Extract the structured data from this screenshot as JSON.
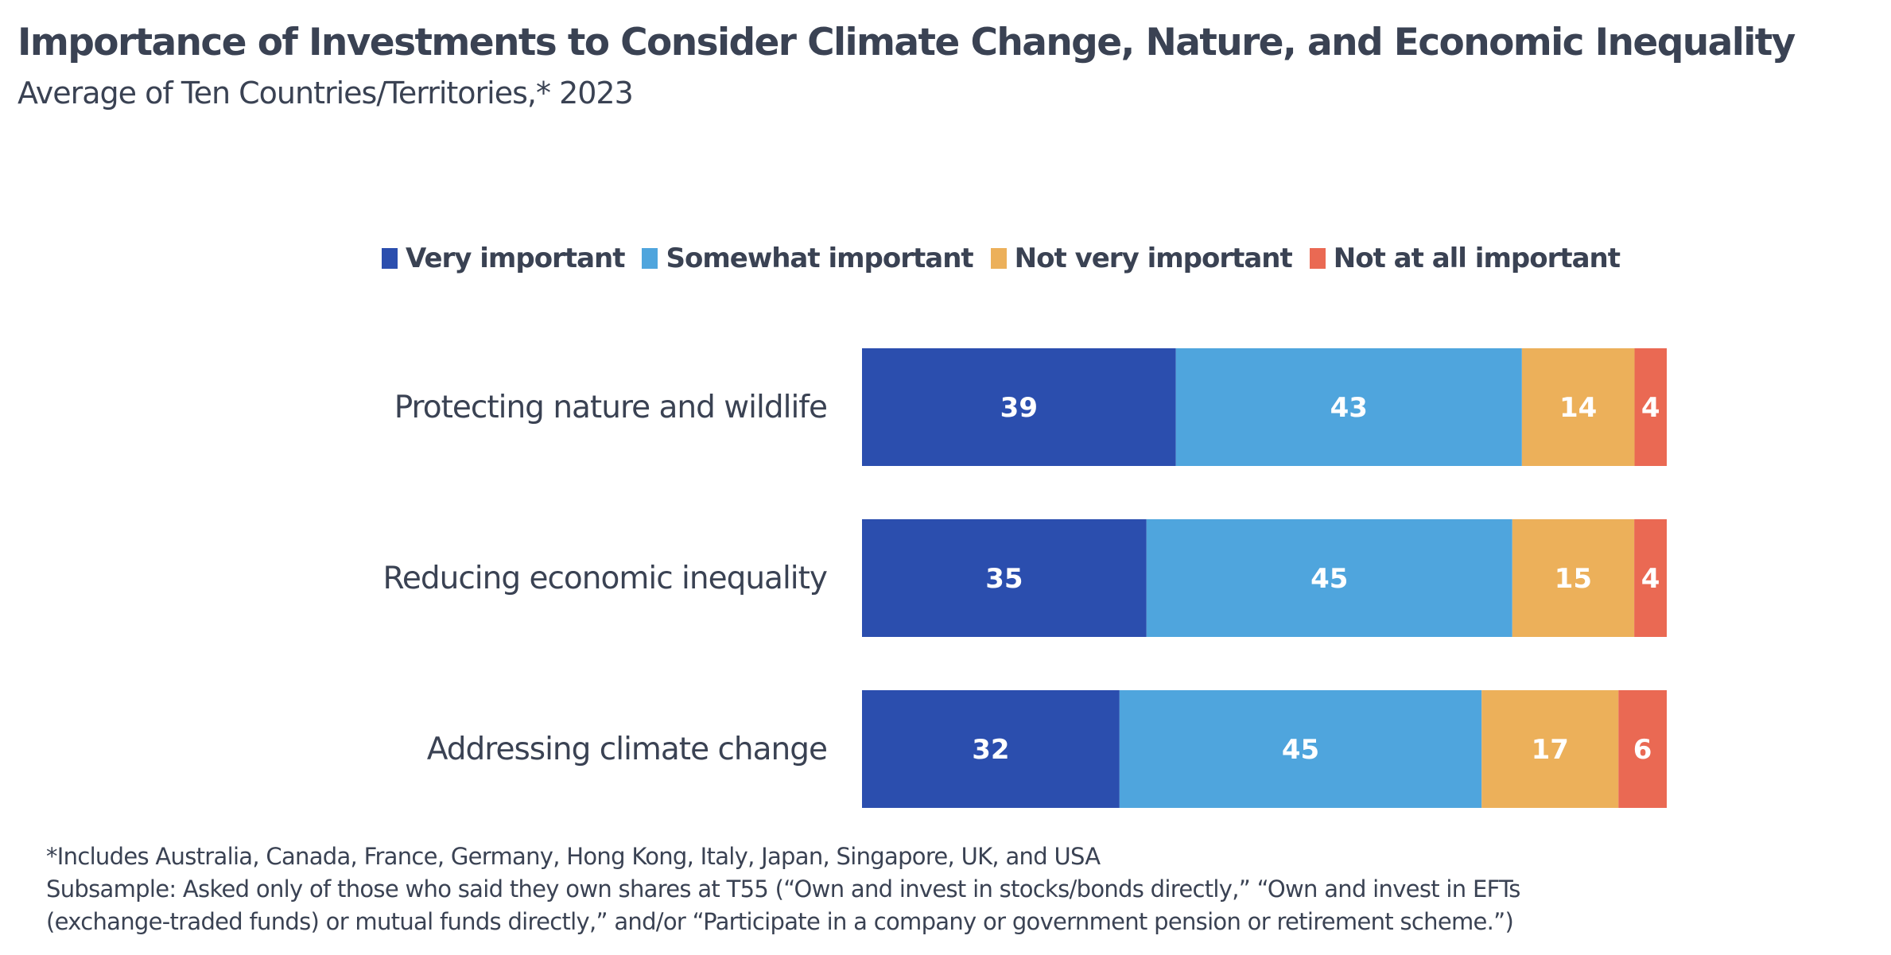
{
  "chart_data": {
    "type": "bar",
    "orientation": "horizontal",
    "stacked": true,
    "title": "Importance of Investments to Consider Climate Change, Nature, and Economic Inequality",
    "subtitle": "Average of Ten Countries/Territories,* 2023",
    "categories": [
      "Protecting nature and wildlife",
      "Reducing economic inequality",
      "Addressing climate change"
    ],
    "series": [
      {
        "name": "Very important",
        "values": [
          39,
          35,
          32
        ],
        "color": "#2b4eae"
      },
      {
        "name": "Somewhat important",
        "values": [
          43,
          45,
          45
        ],
        "color": "#4fa5dd"
      },
      {
        "name": "Not very important",
        "values": [
          14,
          15,
          17
        ],
        "color": "#ecb05a"
      },
      {
        "name": "Not at all important",
        "values": [
          4,
          4,
          6
        ],
        "color": "#ea6953"
      }
    ],
    "data_labels": true,
    "legend_position": "top",
    "grid": false,
    "axes_visible": false
  },
  "footnotes": [
    "*Includes Australia, Canada, France, Germany, Hong Kong, Italy, Japan, Singapore, UK, and USA",
    "Subsample: Asked only of those who said they own shares at T55 (“Own and invest in stocks/bonds directly,” “Own and invest in EFTs",
    "(exchange-traded funds) or mutual funds directly,” and/or “Participate in a company or government pension or retirement scheme.”)"
  ]
}
